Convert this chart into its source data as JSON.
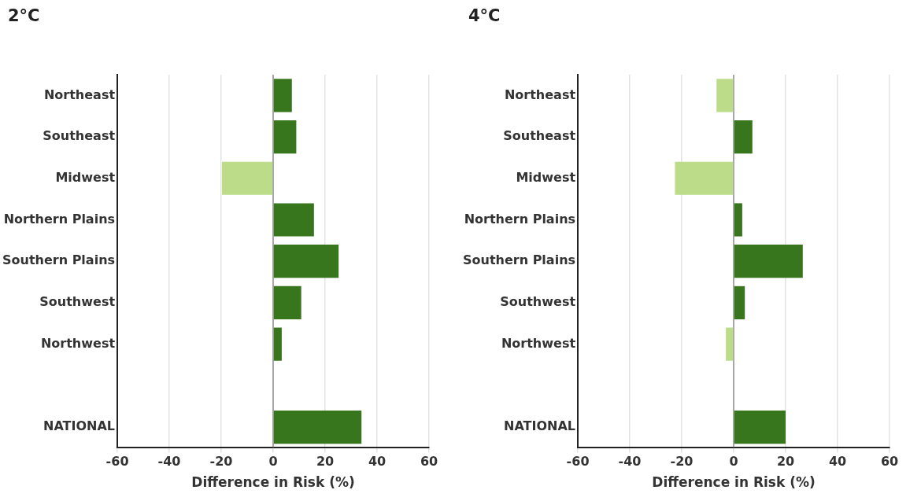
{
  "chart_data": [
    {
      "type": "bar",
      "orientation": "horizontal",
      "title": "2°C",
      "xlabel": "Difference in Risk (%)",
      "categories": [
        "Northeast",
        "Southeast",
        "Midwest",
        "Northern Plains",
        "Southern Plains",
        "Southwest",
        "Northwest",
        null,
        "NATIONAL"
      ],
      "values": [
        7.2,
        8.9,
        -19.7,
        15.7,
        25.2,
        10.8,
        3.3,
        null,
        34
      ],
      "colors": [
        "#38761d",
        "#38761d",
        "#bcdc8a",
        "#38761d",
        "#38761d",
        "#38761d",
        "#38761d",
        "#38761d",
        "#38761d"
      ],
      "xlim": [
        -60,
        60
      ],
      "xticks": [
        -60,
        -40,
        -20,
        0,
        20,
        40,
        60
      ],
      "grid": "x",
      "ref_lines": [
        {
          "axis": "x",
          "value": 0,
          "color": "#666666"
        }
      ]
    },
    {
      "type": "bar",
      "orientation": "horizontal",
      "title": "4°C",
      "xlabel": "Difference in Risk (%)",
      "categories": [
        "Northeast",
        "Southeast",
        "Midwest",
        "Northern Plains",
        "Southern Plains",
        "Southwest",
        "Northwest",
        null,
        "NATIONAL"
      ],
      "values": [
        -6.6,
        7.2,
        -22.6,
        3.3,
        26.6,
        4.3,
        -3,
        null,
        20
      ],
      "colors": [
        "#bcdc8a",
        "#38761d",
        "#bcdc8a",
        "#38761d",
        "#38761d",
        "#38761d",
        "#bcdc8a",
        "#38761d",
        "#38761d"
      ],
      "xlim": [
        -60,
        60
      ],
      "xticks": [
        -60,
        -40,
        -20,
        0,
        20,
        40,
        60
      ],
      "grid": "x",
      "ref_lines": [
        {
          "axis": "x",
          "value": 0,
          "color": "#666666"
        }
      ]
    }
  ]
}
